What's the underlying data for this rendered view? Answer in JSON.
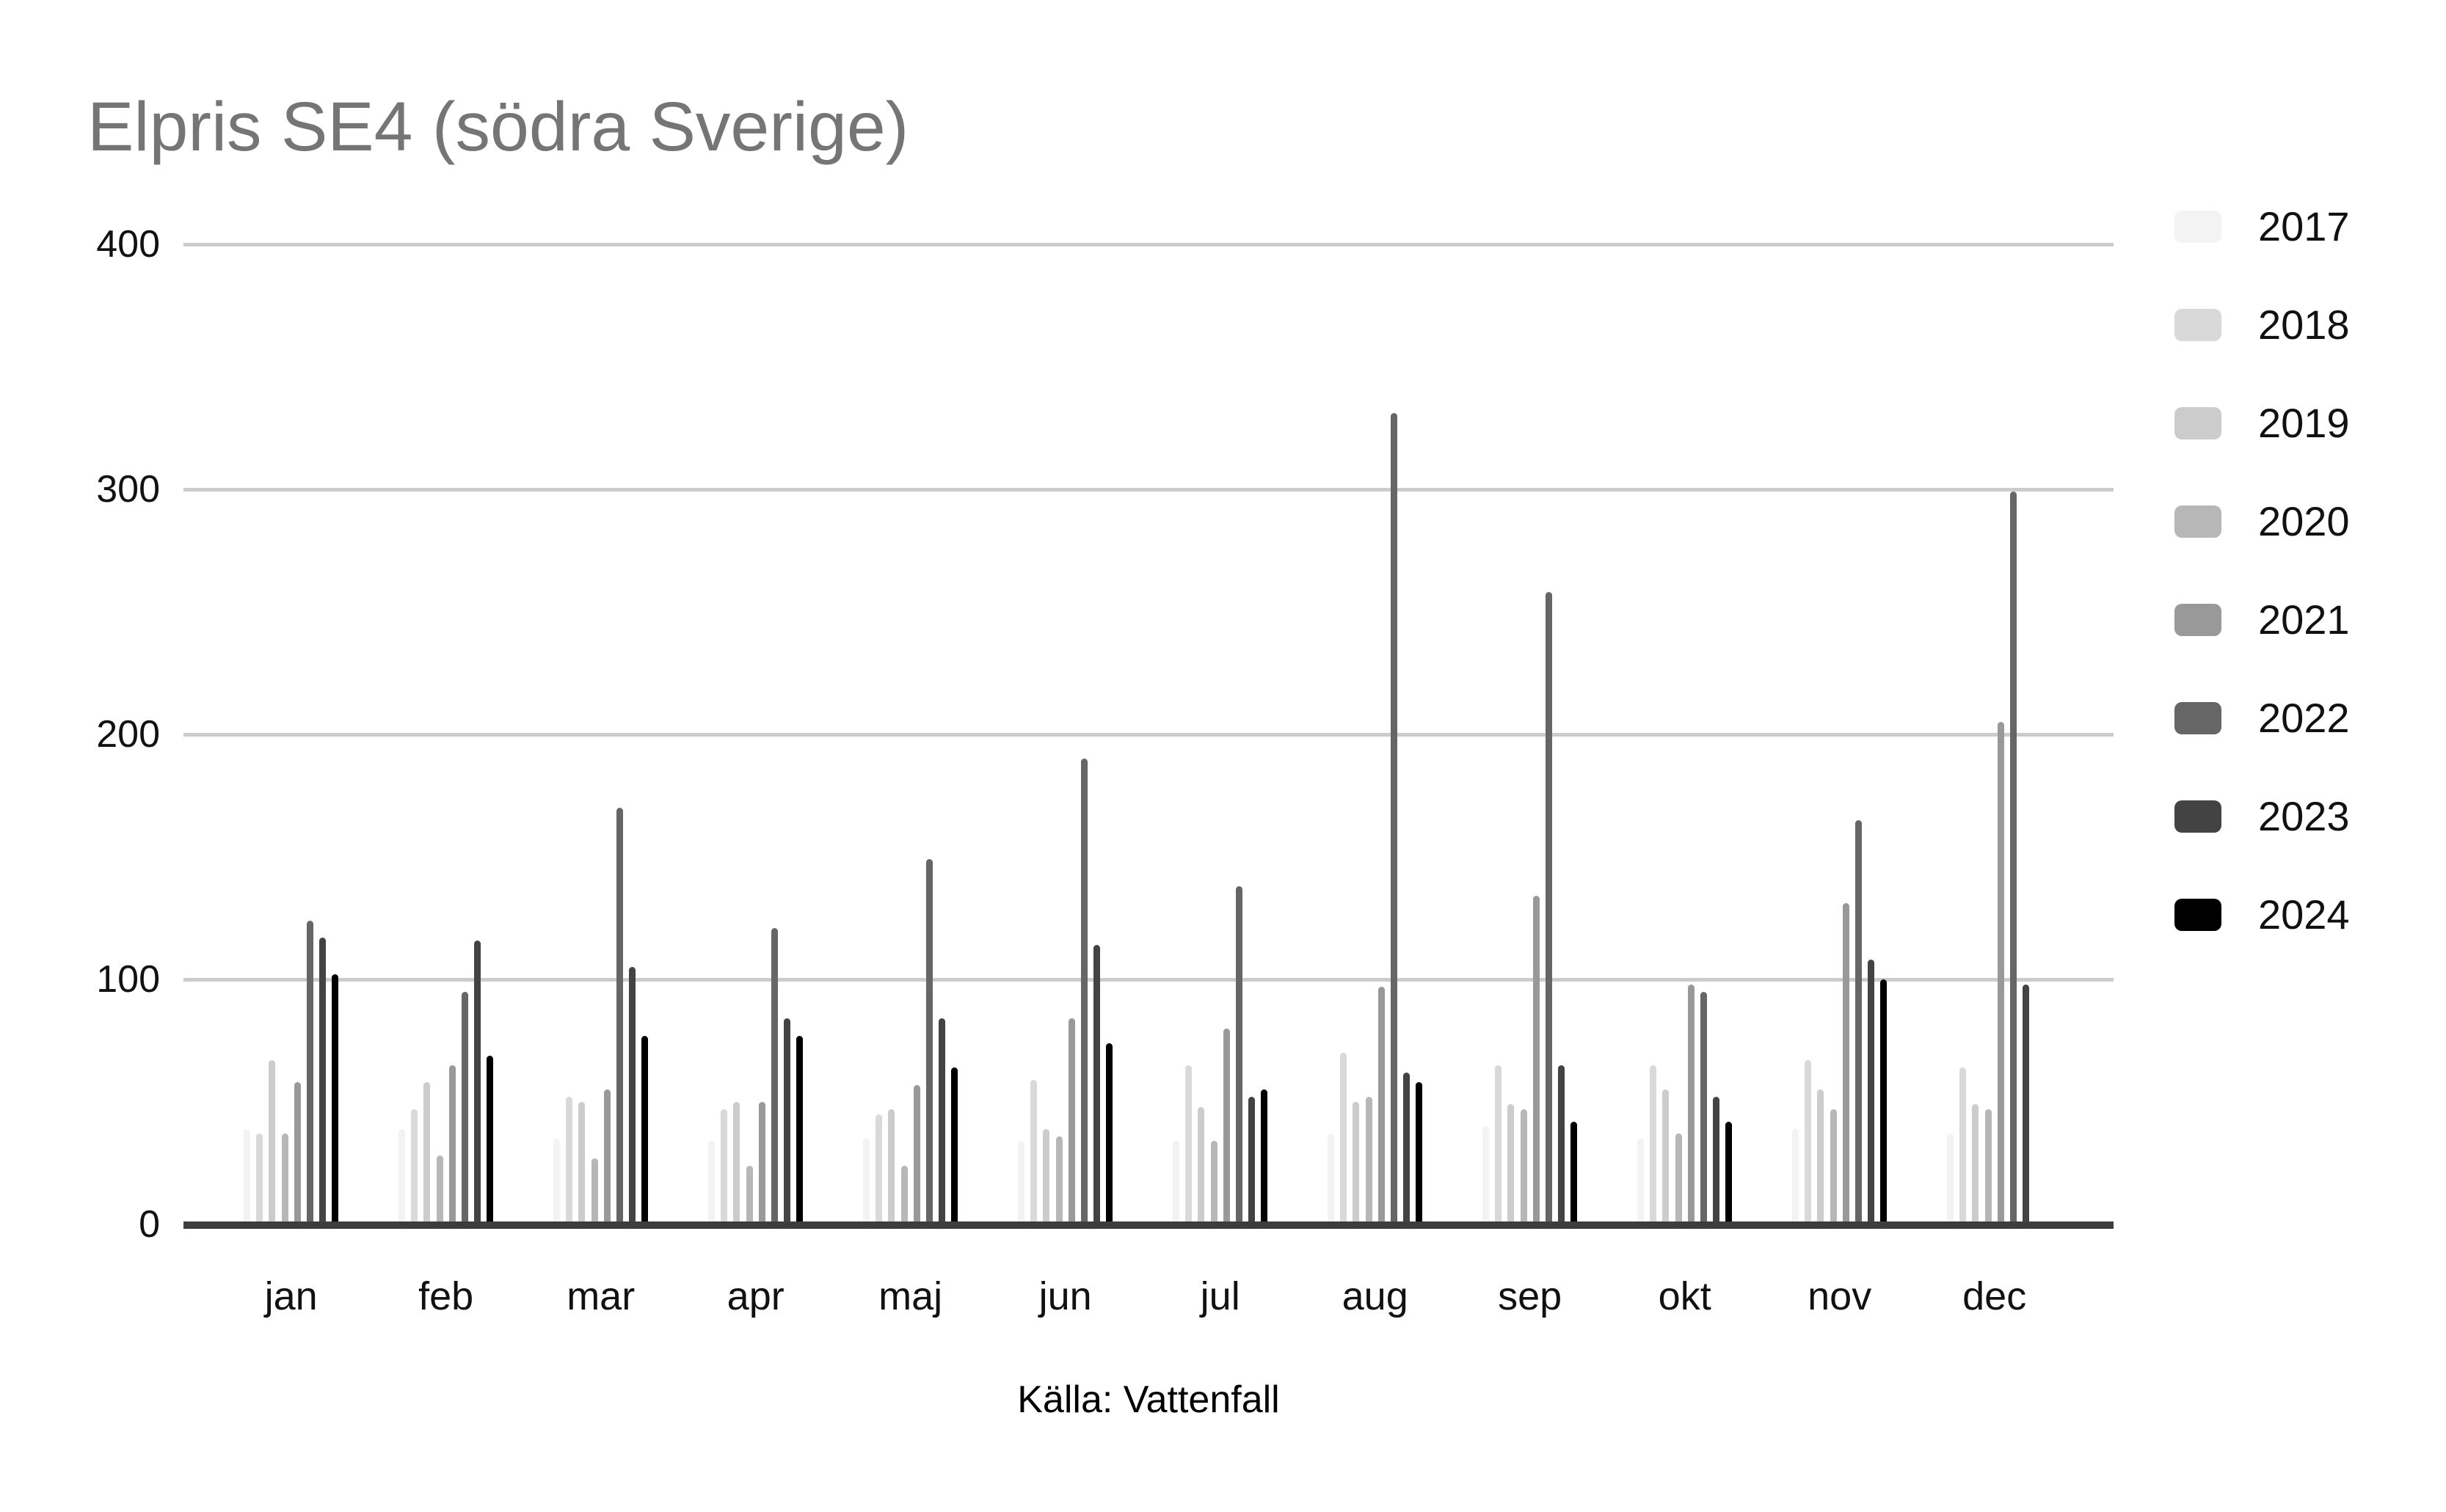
{
  "title": "Elpris SE4 (södra Sverige)",
  "caption": "Källa: Vattenfall",
  "chart_data": {
    "type": "bar",
    "title": "Elpris SE4 (södra Sverige)",
    "xlabel": "",
    "ylabel": "",
    "ylim": [
      0,
      400
    ],
    "yticks": [
      0,
      100,
      200,
      300,
      400
    ],
    "grid": true,
    "legend_position": "right",
    "categories": [
      "jan",
      "feb",
      "mar",
      "apr",
      "maj",
      "jun",
      "jul",
      "aug",
      "sep",
      "okt",
      "nov",
      "dec"
    ],
    "series": [
      {
        "name": "2017",
        "color": "#f3f3f3",
        "values": [
          39,
          39,
          35,
          34,
          35,
          34,
          34,
          37,
          40,
          35,
          39,
          37
        ]
      },
      {
        "name": "2018",
        "color": "#d9d9d9",
        "values": [
          37,
          47,
          52,
          47,
          45,
          59,
          65,
          70,
          65,
          65,
          67,
          64
        ]
      },
      {
        "name": "2019",
        "color": "#cccccc",
        "values": [
          67,
          58,
          50,
          50,
          47,
          39,
          48,
          50,
          49,
          55,
          55,
          49
        ]
      },
      {
        "name": "2020",
        "color": "#b7b7b7",
        "values": [
          37,
          28,
          27,
          24,
          24,
          36,
          34,
          52,
          47,
          37,
          47,
          47
        ]
      },
      {
        "name": "2021",
        "color": "#999999",
        "values": [
          58,
          65,
          55,
          50,
          57,
          84,
          80,
          97,
          134,
          98,
          131,
          205
        ]
      },
      {
        "name": "2022",
        "color": "#666666",
        "values": [
          124,
          95,
          170,
          121,
          149,
          190,
          138,
          331,
          258,
          95,
          165,
          299
        ]
      },
      {
        "name": "2023",
        "color": "#434343",
        "values": [
          117,
          116,
          105,
          84,
          84,
          114,
          52,
          62,
          65,
          52,
          108,
          98
        ]
      },
      {
        "name": "2024",
        "color": "#000000",
        "values": [
          102,
          69,
          77,
          77,
          64,
          74,
          55,
          58,
          42,
          42,
          100,
          null
        ]
      }
    ]
  }
}
